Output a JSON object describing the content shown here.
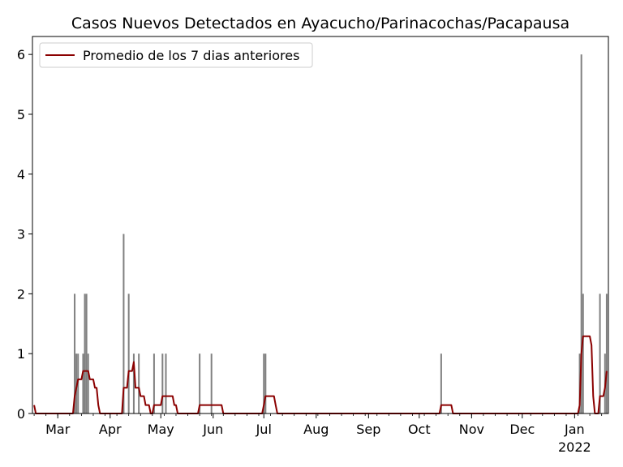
{
  "chart_data": {
    "type": "bar",
    "title": "Casos Nuevos Detectados en Ayacucho/Parinacochas/Pacapausa",
    "xlabel": "",
    "ylabel": "",
    "x_range": [
      "2021-02-14",
      "2022-01-21"
    ],
    "ylim": [
      0,
      6.3
    ],
    "y_ticks": [
      0,
      1,
      2,
      3,
      4,
      5,
      6
    ],
    "x_ticks": [
      {
        "date": "2021-03-01",
        "label": "Mar"
      },
      {
        "date": "2021-04-01",
        "label": "Apr"
      },
      {
        "date": "2021-05-01",
        "label": "May"
      },
      {
        "date": "2021-06-01",
        "label": "Jun"
      },
      {
        "date": "2021-07-01",
        "label": "Jul"
      },
      {
        "date": "2021-08-01",
        "label": "Aug"
      },
      {
        "date": "2021-09-01",
        "label": "Sep"
      },
      {
        "date": "2021-10-01",
        "label": "Oct"
      },
      {
        "date": "2021-11-01",
        "label": "Nov"
      },
      {
        "date": "2021-12-01",
        "label": "Dec"
      },
      {
        "date": "2022-01-01",
        "label": "Jan"
      }
    ],
    "year_label": "2022",
    "grid": false,
    "legend_position": "top-left",
    "bar_color": "#808080",
    "line_color": "#8b0000",
    "series": [
      {
        "kind": "bar",
        "values": [
          [
            "2021-03-11",
            2
          ],
          [
            "2021-03-12",
            1
          ],
          [
            "2021-03-13",
            1
          ],
          [
            "2021-03-16",
            1
          ],
          [
            "2021-03-17",
            2
          ],
          [
            "2021-03-18",
            2
          ],
          [
            "2021-03-19",
            1
          ],
          [
            "2021-04-09",
            3
          ],
          [
            "2021-04-12",
            2
          ],
          [
            "2021-04-15",
            1
          ],
          [
            "2021-04-18",
            1
          ],
          [
            "2021-04-27",
            1
          ],
          [
            "2021-05-02",
            1
          ],
          [
            "2021-05-04",
            1
          ],
          [
            "2021-05-24",
            1
          ],
          [
            "2021-05-31",
            1
          ],
          [
            "2021-07-01",
            1
          ],
          [
            "2021-07-02",
            1
          ],
          [
            "2021-10-14",
            1
          ],
          [
            "2022-01-04",
            1
          ],
          [
            "2022-01-05",
            6
          ],
          [
            "2022-01-06",
            2
          ],
          [
            "2022-01-16",
            2
          ],
          [
            "2022-01-19",
            1
          ],
          [
            "2022-01-20",
            2
          ]
        ]
      },
      {
        "kind": "line",
        "name": "Promedio de los 7 dias anteriores",
        "values": [
          [
            "2021-02-15",
            0.14
          ],
          [
            "2021-02-16",
            0
          ],
          [
            "2021-03-10",
            0
          ],
          [
            "2021-03-11",
            0.29
          ],
          [
            "2021-03-12",
            0.43
          ],
          [
            "2021-03-13",
            0.57
          ],
          [
            "2021-03-15",
            0.57
          ],
          [
            "2021-03-16",
            0.71
          ],
          [
            "2021-03-19",
            0.71
          ],
          [
            "2021-03-20",
            0.57
          ],
          [
            "2021-03-22",
            0.57
          ],
          [
            "2021-03-23",
            0.43
          ],
          [
            "2021-03-24",
            0.43
          ],
          [
            "2021-03-25",
            0.14
          ],
          [
            "2021-03-26",
            0
          ],
          [
            "2021-04-08",
            0
          ],
          [
            "2021-04-09",
            0.43
          ],
          [
            "2021-04-11",
            0.43
          ],
          [
            "2021-04-12",
            0.71
          ],
          [
            "2021-04-14",
            0.71
          ],
          [
            "2021-04-15",
            0.86
          ],
          [
            "2021-04-16",
            0.43
          ],
          [
            "2021-04-18",
            0.43
          ],
          [
            "2021-04-19",
            0.29
          ],
          [
            "2021-04-21",
            0.29
          ],
          [
            "2021-04-22",
            0.14
          ],
          [
            "2021-04-24",
            0.14
          ],
          [
            "2021-04-25",
            0
          ],
          [
            "2021-04-26",
            0
          ],
          [
            "2021-04-27",
            0.14
          ],
          [
            "2021-05-01",
            0.14
          ],
          [
            "2021-05-02",
            0.29
          ],
          [
            "2021-05-08",
            0.29
          ],
          [
            "2021-05-09",
            0.14
          ],
          [
            "2021-05-10",
            0.14
          ],
          [
            "2021-05-11",
            0
          ],
          [
            "2021-05-23",
            0
          ],
          [
            "2021-05-24",
            0.14
          ],
          [
            "2021-06-06",
            0.14
          ],
          [
            "2021-06-07",
            0
          ],
          [
            "2021-06-30",
            0
          ],
          [
            "2021-07-01",
            0.14
          ],
          [
            "2021-07-02",
            0.29
          ],
          [
            "2021-07-07",
            0.29
          ],
          [
            "2021-07-08",
            0.14
          ],
          [
            "2021-07-09",
            0
          ],
          [
            "2021-10-13",
            0
          ],
          [
            "2021-10-14",
            0.14
          ],
          [
            "2021-10-20",
            0.14
          ],
          [
            "2021-10-21",
            0
          ],
          [
            "2022-01-03",
            0
          ],
          [
            "2022-01-04",
            0.14
          ],
          [
            "2022-01-05",
            1.0
          ],
          [
            "2022-01-06",
            1.29
          ],
          [
            "2022-01-10",
            1.29
          ],
          [
            "2022-01-11",
            1.14
          ],
          [
            "2022-01-12",
            0.29
          ],
          [
            "2022-01-13",
            0
          ],
          [
            "2022-01-15",
            0
          ],
          [
            "2022-01-16",
            0.29
          ],
          [
            "2022-01-18",
            0.29
          ],
          [
            "2022-01-19",
            0.43
          ],
          [
            "2022-01-20",
            0.71
          ]
        ]
      }
    ]
  }
}
